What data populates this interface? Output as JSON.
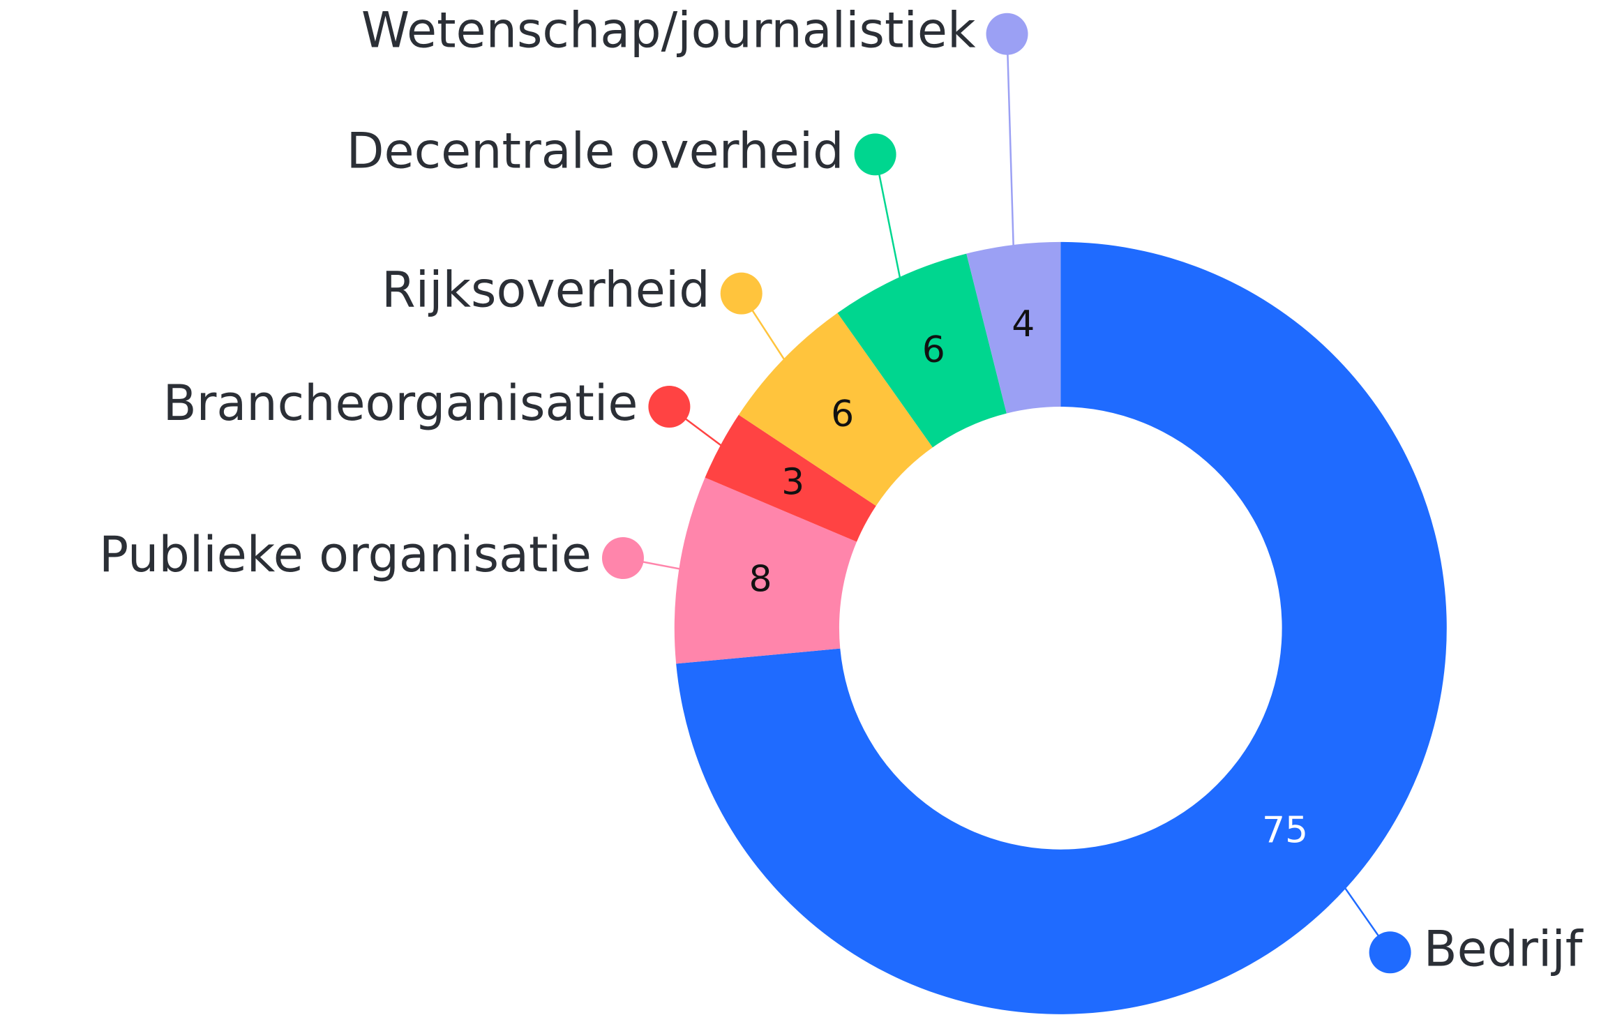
{
  "chart_data": {
    "type": "donut",
    "categories": [
      "Bedrijf",
      "Publieke organisatie",
      "Brancheorganisatie",
      "Rijksoverheid",
      "Decentrale overheid",
      "Wetenschap/journalistiek"
    ],
    "values": [
      75,
      8,
      3,
      6,
      6,
      4
    ],
    "colors": [
      "#1f6bff",
      "#ff85ab",
      "#ff4343",
      "#ffc43d",
      "#00d68f",
      "#9ba0f4"
    ]
  }
}
